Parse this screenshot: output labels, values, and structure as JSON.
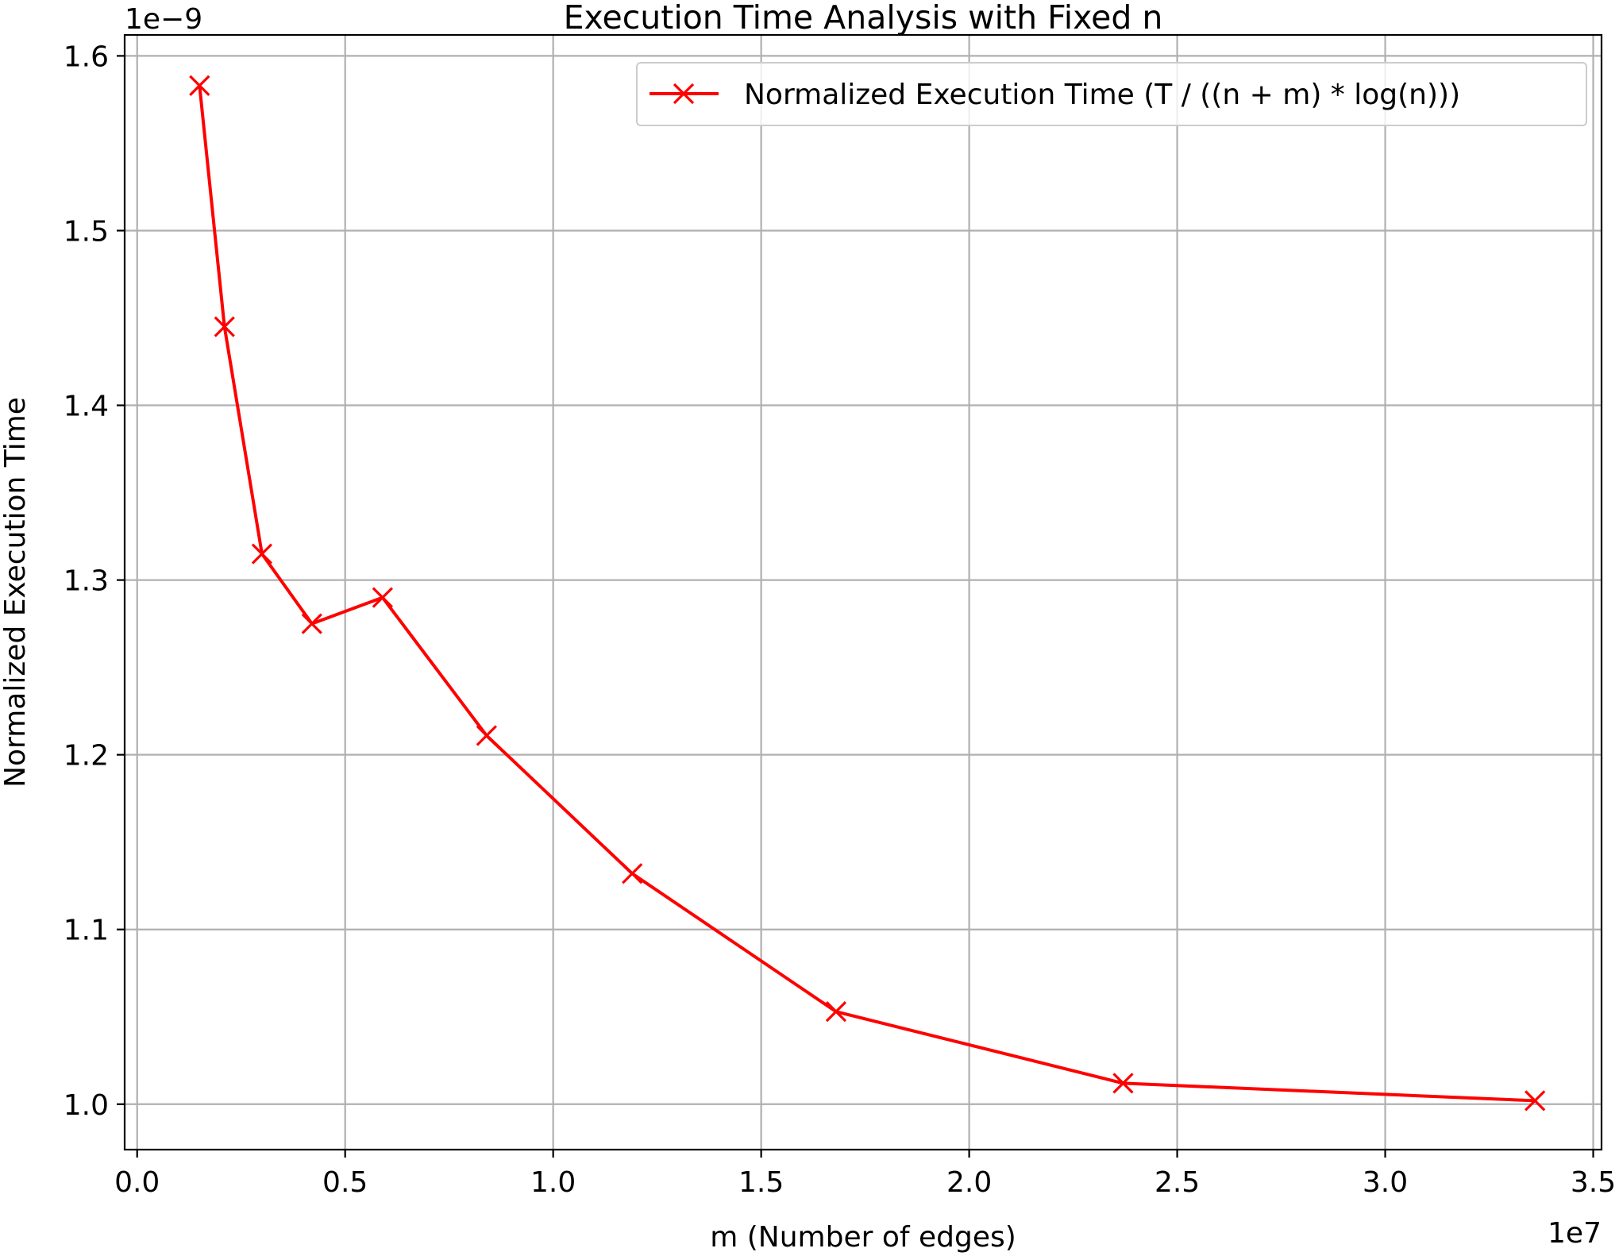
{
  "chart_data": {
    "type": "line",
    "title": "Execution Time Analysis with Fixed n",
    "xlabel": "m (Number of edges)",
    "ylabel": "Normalized Execution Time",
    "x_offset_label": "1e7",
    "y_offset_label": "1e−9",
    "xlim": [
      -0.03,
      3.52
    ],
    "ylim": [
      0.974,
      1.612
    ],
    "x_ticks": [
      0.0,
      0.5,
      1.0,
      1.5,
      2.0,
      2.5,
      3.0,
      3.5
    ],
    "x_tick_labels": [
      "0.0",
      "0.5",
      "1.0",
      "1.5",
      "2.0",
      "2.5",
      "3.0",
      "3.5"
    ],
    "y_ticks": [
      1.0,
      1.1,
      1.2,
      1.3,
      1.4,
      1.5,
      1.6
    ],
    "y_tick_labels": [
      "1.0",
      "1.1",
      "1.2",
      "1.3",
      "1.4",
      "1.5",
      "1.6"
    ],
    "grid": true,
    "legend_position": "top-right",
    "series": [
      {
        "name": "Normalized Execution Time (T / ((n + m) * log(n)))",
        "color": "#ff0000",
        "marker": "x",
        "x": [
          0.15,
          0.21,
          0.3,
          0.42,
          0.59,
          0.84,
          1.19,
          1.68,
          2.37,
          3.36
        ],
        "y": [
          1.583,
          1.445,
          1.315,
          1.275,
          1.29,
          1.211,
          1.132,
          1.053,
          1.012,
          1.002
        ]
      }
    ]
  }
}
